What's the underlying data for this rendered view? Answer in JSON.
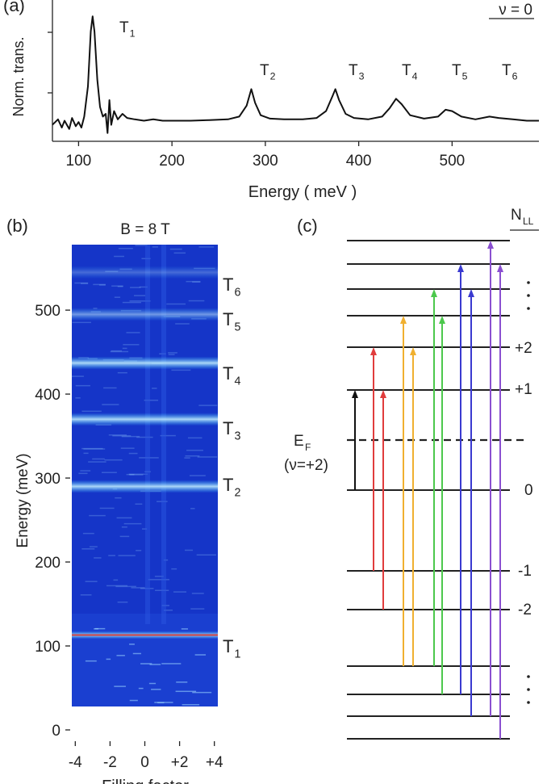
{
  "chart_data": [
    {
      "type": "line",
      "panel_label": "(a)",
      "title": "ν = 0",
      "xlabel": "Energy ( meV )",
      "ylabel": "Norm. trans.",
      "x": [
        72,
        78,
        82,
        85,
        90,
        93,
        97,
        100,
        103,
        106,
        110,
        113,
        115,
        117,
        120,
        123,
        126,
        129,
        131,
        133,
        135,
        138,
        142,
        147,
        152,
        160,
        170,
        180,
        190,
        200,
        220,
        240,
        260,
        272,
        280,
        285,
        289,
        295,
        305,
        320,
        340,
        355,
        365,
        372,
        375,
        379,
        386,
        395,
        410,
        425,
        433,
        440,
        446,
        455,
        470,
        485,
        493,
        500,
        510,
        525,
        540,
        550,
        565,
        580,
        593
      ],
      "series": [
        {
          "color": "#111111",
          "values": [
            0.12,
            0.16,
            0.1,
            0.15,
            0.09,
            0.17,
            0.11,
            0.14,
            0.1,
            0.18,
            0.4,
            0.8,
            0.91,
            0.8,
            0.45,
            0.25,
            0.18,
            0.2,
            0.06,
            0.3,
            0.12,
            0.22,
            0.16,
            0.2,
            0.17,
            0.16,
            0.15,
            0.16,
            0.15,
            0.15,
            0.15,
            0.155,
            0.16,
            0.18,
            0.26,
            0.38,
            0.28,
            0.19,
            0.165,
            0.16,
            0.16,
            0.17,
            0.22,
            0.33,
            0.38,
            0.3,
            0.2,
            0.17,
            0.16,
            0.18,
            0.24,
            0.31,
            0.27,
            0.19,
            0.165,
            0.18,
            0.23,
            0.22,
            0.18,
            0.16,
            0.18,
            0.17,
            0.16,
            0.15,
            0.15
          ]
        }
      ],
      "xlim": [
        72,
        593
      ],
      "ylim": [
        0,
        1
      ],
      "xticks": [
        100,
        200,
        300,
        400,
        500
      ],
      "annotations": [
        {
          "text": "T",
          "sub": "1",
          "color": "#111111"
        },
        {
          "text": "T",
          "sub": "2",
          "color": "#c0392b"
        },
        {
          "text": "T",
          "sub": "3",
          "color": "#f0b030"
        },
        {
          "text": "T",
          "sub": "4",
          "color": "#4cb84c"
        },
        {
          "text": "T",
          "sub": "5",
          "color": "#3a3ad0"
        },
        {
          "text": "T",
          "sub": "6",
          "color": "#8a4fd0"
        }
      ]
    },
    {
      "type": "heatmap",
      "panel_label": "(b)",
      "title": "B = 8 T",
      "xlabel": "Filling factor",
      "ylabel": "Energy (meV)",
      "xlim": [
        -4.2,
        4.2
      ],
      "ylim": [
        0,
        578
      ],
      "xticks": [
        -4,
        -2,
        0,
        {
          "value": 2,
          "label": "+2"
        },
        {
          "value": 4,
          "label": "+4"
        }
      ],
      "yticks": [
        0,
        100,
        200,
        300,
        400,
        500
      ],
      "bands": [
        {
          "text": "T",
          "sub": "1",
          "energy": 113,
          "color": "#111111"
        },
        {
          "text": "T",
          "sub": "2",
          "energy": 290,
          "color": "#c0392b"
        },
        {
          "text": "T",
          "sub": "3",
          "energy": 370,
          "color": "#f0b030"
        },
        {
          "text": "T",
          "sub": "4",
          "energy": 437,
          "color": "#4cb84c"
        },
        {
          "text": "T",
          "sub": "5",
          "energy": 495,
          "color": "#3a3ad0"
        },
        {
          "text": "T",
          "sub": "6",
          "energy": 545,
          "color": "#8a4fd0"
        }
      ]
    }
  ],
  "diagram": {
    "panel_label": "(c)",
    "header": {
      "text": "N",
      "sub": "LL"
    },
    "level_labels": [
      "+2",
      "+1",
      "0",
      "-1",
      "-2"
    ],
    "fermi_level": {
      "text": "E",
      "sub": "F"
    },
    "filling": "(ν=+2)"
  }
}
